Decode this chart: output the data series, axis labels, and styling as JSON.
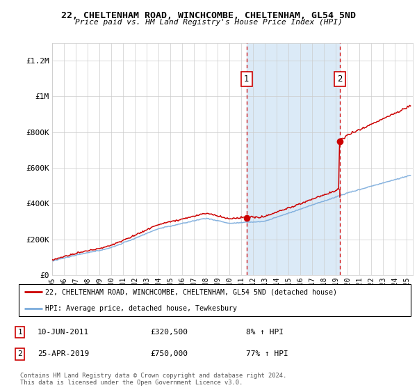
{
  "title": "22, CHELTENHAM ROAD, WINCHCOMBE, CHELTENHAM, GL54 5ND",
  "subtitle": "Price paid vs. HM Land Registry's House Price Index (HPI)",
  "ylabel_ticks": [
    "£0",
    "£200K",
    "£400K",
    "£600K",
    "£800K",
    "£1M",
    "£1.2M"
  ],
  "ytick_values": [
    0,
    200000,
    400000,
    600000,
    800000,
    1000000,
    1200000
  ],
  "ylim": [
    0,
    1300000
  ],
  "xlim_start": 1995.0,
  "xlim_end": 2025.5,
  "xtick_years": [
    1995,
    1996,
    1997,
    1998,
    1999,
    2000,
    2001,
    2002,
    2003,
    2004,
    2005,
    2006,
    2007,
    2008,
    2009,
    2010,
    2011,
    2012,
    2013,
    2014,
    2015,
    2016,
    2017,
    2018,
    2019,
    2020,
    2021,
    2022,
    2023,
    2024,
    2025
  ],
  "sale1_x": 2011.44,
  "sale1_y": 320500,
  "sale2_x": 2019.32,
  "sale2_y": 750000,
  "sale_dot_color": "#cc0000",
  "hpi_line_color": "#7aabdc",
  "price_line_color": "#cc0000",
  "shade_color": "#dbeaf7",
  "legend_label_price": "22, CHELTENHAM ROAD, WINCHCOMBE, CHELTENHAM, GL54 5ND (detached house)",
  "legend_label_hpi": "HPI: Average price, detached house, Tewkesbury",
  "sale1_date": "10-JUN-2011",
  "sale1_price": "£320,500",
  "sale1_hpi": "8% ↑ HPI",
  "sale2_date": "25-APR-2019",
  "sale2_price": "£750,000",
  "sale2_hpi": "77% ↑ HPI",
  "footer": "Contains HM Land Registry data © Crown copyright and database right 2024.\nThis data is licensed under the Open Government Licence v3.0.",
  "bg_color": "#ffffff",
  "grid_color": "#cccccc",
  "vline_color": "#cc0000"
}
